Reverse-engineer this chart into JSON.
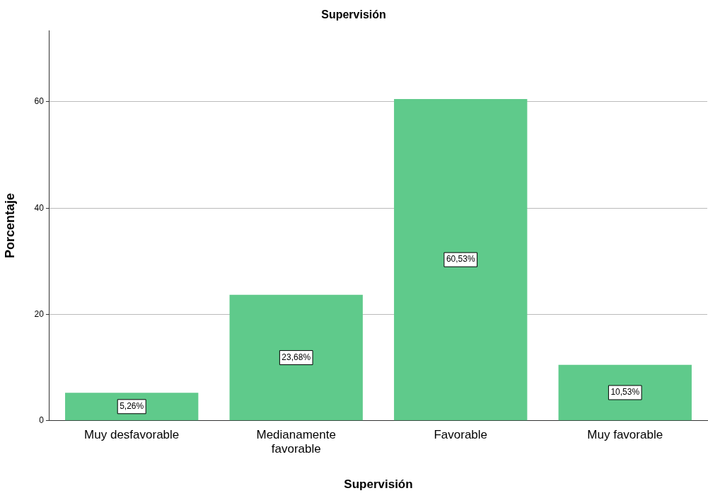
{
  "chart_data": {
    "type": "bar",
    "title": "Supervisión",
    "xlabel": "Supervisión",
    "ylabel": "Porcentaje",
    "categories": [
      "Muy desfavorable",
      "Medianamente favorable",
      "Favorable",
      "Muy favorable"
    ],
    "values": [
      5.26,
      23.68,
      60.53,
      10.53
    ],
    "value_labels": [
      "5,26%",
      "23,68%",
      "60,53%",
      "10,53%"
    ],
    "color": "#5fca8b",
    "ylim": [
      0,
      73.4
    ],
    "yticks": [
      0,
      20,
      40,
      60
    ],
    "grid": "y",
    "legend": false
  }
}
